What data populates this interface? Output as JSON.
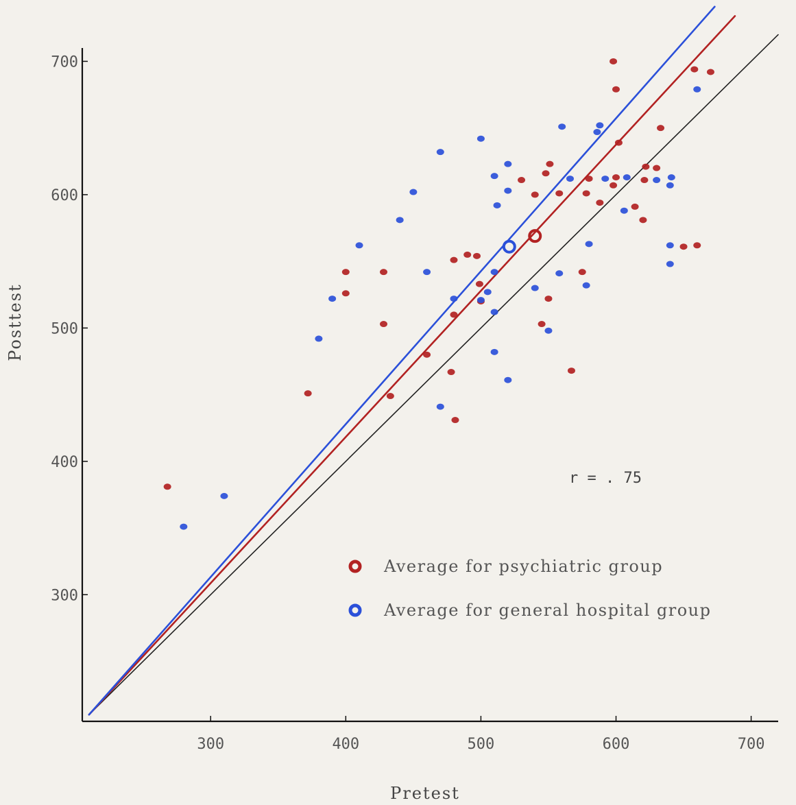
{
  "chart_data": {
    "type": "scatter",
    "title": "",
    "xlabel": "Pretest",
    "ylabel": "Posttest",
    "xlim": [
      205,
      720
    ],
    "ylim": [
      205,
      710
    ],
    "xticks": [
      300,
      400,
      500,
      600,
      700
    ],
    "yticks": [
      300,
      400,
      500,
      600,
      700
    ],
    "annotation": "r = . 75",
    "colors": {
      "psychiatric": "#b22222",
      "general": "#2b50d9",
      "identity": "#222222"
    },
    "series": [
      {
        "key": "psychiatric",
        "color": "#b22222",
        "points": [
          [
            268,
            381
          ],
          [
            372,
            451
          ],
          [
            400,
            542
          ],
          [
            400,
            526
          ],
          [
            428,
            542
          ],
          [
            428,
            503
          ],
          [
            433,
            449
          ],
          [
            460,
            480
          ],
          [
            478,
            467
          ],
          [
            480,
            510
          ],
          [
            480,
            551
          ],
          [
            481,
            431
          ],
          [
            490,
            555
          ],
          [
            497,
            554
          ],
          [
            500,
            520
          ],
          [
            499,
            533
          ],
          [
            530,
            611
          ],
          [
            540,
            600
          ],
          [
            545,
            503
          ],
          [
            548,
            616
          ],
          [
            550,
            522
          ],
          [
            551,
            623
          ],
          [
            558,
            601
          ],
          [
            567,
            468
          ],
          [
            575,
            542
          ],
          [
            578,
            601
          ],
          [
            580,
            612
          ],
          [
            588,
            594
          ],
          [
            598,
            700
          ],
          [
            598,
            607
          ],
          [
            600,
            613
          ],
          [
            600,
            679
          ],
          [
            602,
            639
          ],
          [
            614,
            591
          ],
          [
            620,
            581
          ],
          [
            622,
            621
          ],
          [
            621,
            611
          ],
          [
            630,
            620
          ],
          [
            633,
            650
          ],
          [
            650,
            561
          ],
          [
            660,
            562
          ],
          [
            658,
            694
          ],
          [
            670,
            692
          ]
        ]
      },
      {
        "key": "general",
        "color": "#2b50d9",
        "points": [
          [
            280,
            351
          ],
          [
            310,
            374
          ],
          [
            380,
            492
          ],
          [
            390,
            522
          ],
          [
            410,
            562
          ],
          [
            440,
            581
          ],
          [
            450,
            602
          ],
          [
            460,
            542
          ],
          [
            470,
            632
          ],
          [
            470,
            441
          ],
          [
            480,
            522
          ],
          [
            500,
            642
          ],
          [
            500,
            521
          ],
          [
            505,
            527
          ],
          [
            510,
            542
          ],
          [
            510,
            512
          ],
          [
            510,
            482
          ],
          [
            510,
            614
          ],
          [
            512,
            592
          ],
          [
            520,
            623
          ],
          [
            520,
            603
          ],
          [
            520,
            461
          ],
          [
            540,
            530
          ],
          [
            550,
            498
          ],
          [
            558,
            541
          ],
          [
            560,
            651
          ],
          [
            566,
            612
          ],
          [
            578,
            532
          ],
          [
            580,
            563
          ],
          [
            586,
            647
          ],
          [
            588,
            652
          ],
          [
            592,
            612
          ],
          [
            606,
            588
          ],
          [
            608,
            613
          ],
          [
            630,
            611
          ],
          [
            640,
            607
          ],
          [
            640,
            562
          ],
          [
            640,
            548
          ],
          [
            641,
            613
          ],
          [
            660,
            679
          ]
        ]
      }
    ],
    "averages": [
      {
        "key": "psychiatric",
        "x": 540,
        "y": 569,
        "color": "#b22222"
      },
      {
        "key": "general",
        "x": 521,
        "y": 561,
        "color": "#2b50d9"
      }
    ],
    "lines": [
      {
        "key": "identity",
        "from": [
          210,
          210
        ],
        "to": [
          720,
          720
        ],
        "color": "#222222"
      },
      {
        "key": "psychiatric",
        "from": [
          210,
          210
        ],
        "to": [
          688,
          734
        ],
        "color": "#b22222"
      },
      {
        "key": "general",
        "from": [
          210,
          210
        ],
        "to": [
          673,
          741
        ],
        "color": "#2b50d9"
      }
    ],
    "legend": {
      "position": "bottom-right",
      "items": [
        {
          "label": "Average for psychiatric group",
          "color": "#b22222"
        },
        {
          "label": "Average for general hospital group",
          "color": "#2b50d9"
        }
      ]
    }
  }
}
